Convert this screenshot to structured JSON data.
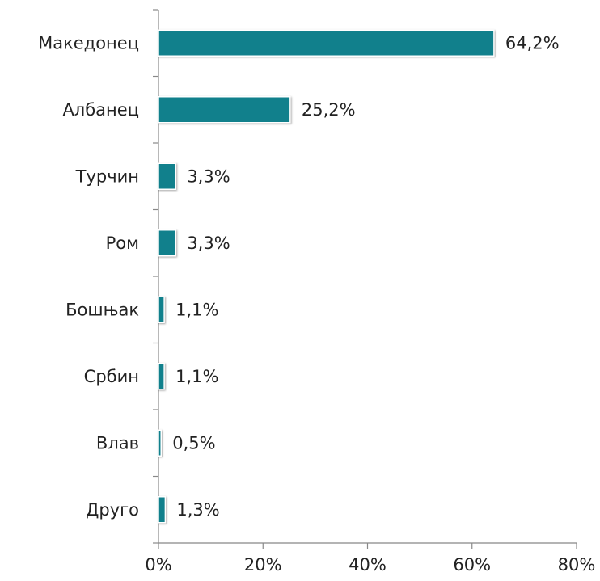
{
  "chart_data": {
    "type": "bar",
    "orientation": "horizontal",
    "categories": [
      "Македонец",
      "Албанец",
      "Турчин",
      "Ром",
      "Бошњак",
      "Србин",
      "Влав",
      "Друго"
    ],
    "values": [
      64.2,
      25.2,
      3.3,
      3.3,
      1.1,
      1.1,
      0.5,
      1.3
    ],
    "value_labels": [
      "64,2%",
      "25,2%",
      "3,3%",
      "3,3%",
      "1,1%",
      "1,1%",
      "0,5%",
      "1,3%"
    ],
    "color": "#11808c",
    "xlim": [
      0,
      80
    ],
    "xticks": [
      {
        "value": 0,
        "label": "0%"
      },
      {
        "value": 20,
        "label": "20%"
      },
      {
        "value": 40,
        "label": "40%"
      },
      {
        "value": 60,
        "label": "60%"
      },
      {
        "value": 80,
        "label": "80%"
      }
    ],
    "grid": false
  }
}
